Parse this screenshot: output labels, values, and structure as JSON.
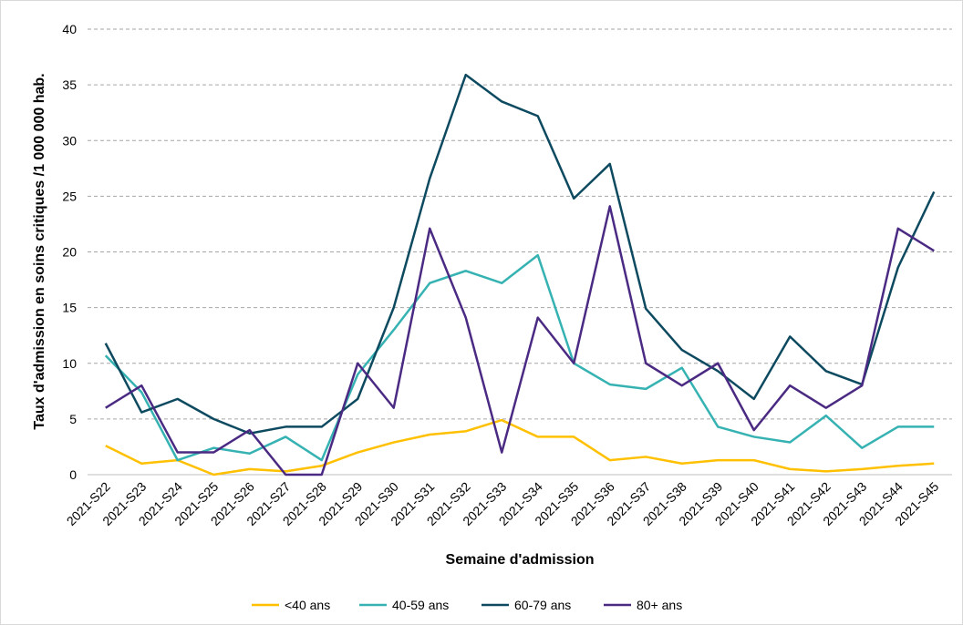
{
  "chart_data": {
    "type": "line",
    "x_label": "Semaine d'admission",
    "y_label": "Taux d'admission en soins critiques /1 000 000 hab.",
    "categories": [
      "2021-S22",
      "2021-S23",
      "2021-S24",
      "2021-S25",
      "2021-S26",
      "2021-S27",
      "2021-S28",
      "2021-S29",
      "2021-S30",
      "2021-S31",
      "2021-S32",
      "2021-S33",
      "2021-S34",
      "2021-S35",
      "2021-S36",
      "2021-S37",
      "2021-S38",
      "2021-S39",
      "2021-S40",
      "2021-S41",
      "2021-S42",
      "2021-S43",
      "2021-S44",
      "2021-S45"
    ],
    "series": [
      {
        "name": "<40 ans",
        "color": "#ffc000",
        "values": [
          2.6,
          1.0,
          1.3,
          0,
          0.5,
          0.3,
          0.8,
          2.0,
          2.9,
          3.6,
          3.9,
          4.9,
          3.4,
          3.4,
          1.3,
          1.6,
          1.0,
          1.3,
          1.3,
          0.5,
          0.3,
          0.5,
          0.8,
          1.0
        ]
      },
      {
        "name": "40-59 ans",
        "color": "#36b2b2",
        "values": [
          10.7,
          7.4,
          1.3,
          2.4,
          1.9,
          3.4,
          1.3,
          9.0,
          13.0,
          17.2,
          18.3,
          17.2,
          19.7,
          10.0,
          8.1,
          7.7,
          9.6,
          4.3,
          3.4,
          2.9,
          5.3,
          2.4,
          4.3,
          4.3
        ]
      },
      {
        "name": "60-79 ans",
        "color": "#0d4a60",
        "values": [
          11.8,
          5.6,
          6.8,
          5.0,
          3.7,
          4.3,
          4.3,
          6.8,
          15.0,
          26.6,
          35.9,
          33.5,
          32.2,
          24.8,
          27.9,
          14.9,
          11.2,
          9.3,
          6.8,
          12.4,
          9.3,
          8.1,
          18.6,
          25.4
        ]
      },
      {
        "name": "80+ ans",
        "color": "#4a2a82",
        "values": [
          6.0,
          8.0,
          2.0,
          2.0,
          4.0,
          0,
          0,
          10.0,
          6.0,
          22.1,
          14.1,
          2.0,
          14.1,
          10.0,
          24.1,
          10.0,
          8.0,
          10.0,
          4.0,
          8.0,
          6.0,
          8.0,
          22.1,
          20.1
        ]
      }
    ],
    "ylim": [
      0,
      40
    ],
    "yticks": [
      0,
      5,
      10,
      15,
      20,
      25,
      30,
      35,
      40
    ],
    "grid": true,
    "legend": "bottom"
  }
}
